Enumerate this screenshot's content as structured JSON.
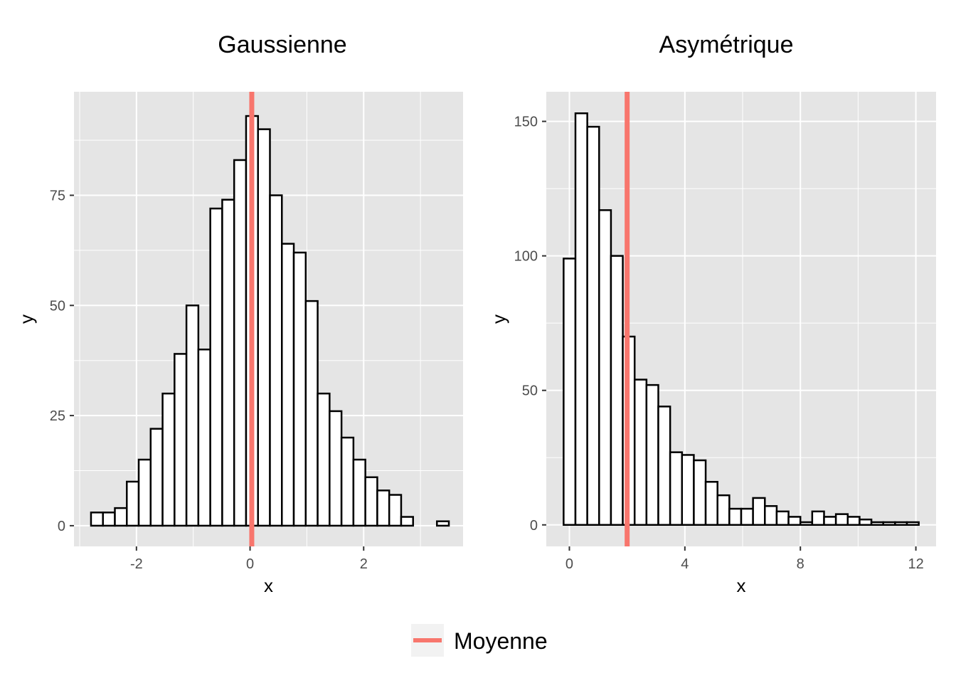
{
  "chart_data": [
    {
      "type": "bar",
      "title": "Gaussienne",
      "xlabel": "x",
      "ylabel": "y",
      "xlim": [
        -3.1,
        3.75
      ],
      "ylim": [
        -4.7,
        98.5
      ],
      "xticks": [
        -2,
        0,
        2
      ],
      "yticks": [
        0,
        25,
        50,
        75
      ],
      "bin_start": -2.8,
      "bin_width": 0.21,
      "values": [
        3,
        3,
        4,
        10,
        15,
        22,
        30,
        39,
        50,
        40,
        72,
        74,
        83,
        93,
        90,
        75,
        64,
        62,
        51,
        30,
        26,
        20,
        15,
        11,
        8,
        7,
        2,
        0,
        0,
        1
      ],
      "mean": 0.03,
      "grid": true,
      "background": "#e5e5e5"
    },
    {
      "type": "bar",
      "title": "Asymétrique",
      "xlabel": "x",
      "ylabel": "y",
      "xlim": [
        -0.8,
        12.7
      ],
      "ylim": [
        -8,
        161
      ],
      "xticks": [
        0,
        4,
        8,
        12
      ],
      "yticks": [
        0,
        50,
        100,
        150
      ],
      "bin_start": -0.2,
      "bin_width": 0.41,
      "values": [
        99,
        153,
        148,
        117,
        100,
        70,
        54,
        52,
        44,
        27,
        26,
        24,
        16,
        11,
        6,
        6,
        10,
        7,
        5,
        3,
        1,
        5,
        3,
        4,
        3,
        2,
        1,
        1,
        1,
        1
      ],
      "mean": 2.0,
      "grid": true,
      "background": "#e5e5e5"
    }
  ],
  "legend": {
    "label": "Moyenne",
    "color": "#f8766d",
    "position": "bottom"
  },
  "colors": {
    "bar_fill": "#ffffff",
    "bar_stroke": "#000000",
    "mean_line": "#f8766d",
    "panel_bg": "#e5e5e5",
    "grid_line": "#ffffff"
  }
}
